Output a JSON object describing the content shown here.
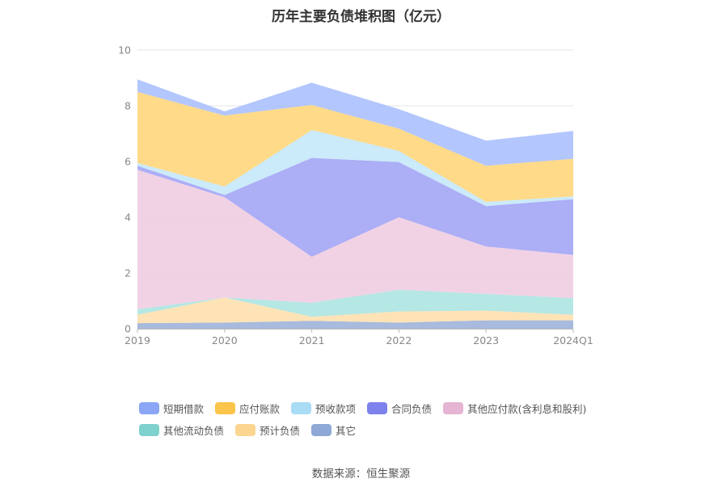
{
  "chart_data": {
    "type": "area",
    "stacked": true,
    "title": "历年主要负债堆积图（亿元）",
    "categories": [
      "2019",
      "2020",
      "2021",
      "2022",
      "2023",
      "2024Q1"
    ],
    "ylim": [
      0,
      10
    ],
    "yticks": [
      0,
      2,
      4,
      6,
      8,
      10
    ],
    "grid": true,
    "legend_position": "bottom",
    "series": [
      {
        "name": "其它",
        "color": "#9fb3d9",
        "values": [
          0.2,
          0.22,
          0.28,
          0.22,
          0.3,
          0.3
        ]
      },
      {
        "name": "预计负债",
        "color": "#fde0ae",
        "values": [
          0.3,
          0.9,
          0.15,
          0.4,
          0.35,
          0.2
        ]
      },
      {
        "name": "其他流动负债",
        "color": "#ade4e1",
        "values": [
          0.2,
          0.0,
          0.5,
          0.78,
          0.6,
          0.6
        ]
      },
      {
        "name": "其他应付款(含利息和股利)",
        "color": "#f0cde2",
        "values": [
          5.0,
          3.6,
          1.65,
          2.6,
          1.7,
          1.55
        ]
      },
      {
        "name": "合同负债",
        "color": "#a3a5f5",
        "values": [
          0.15,
          0.08,
          3.55,
          1.98,
          1.45,
          2.0
        ]
      },
      {
        "name": "预收款项",
        "color": "#c5e8fa",
        "values": [
          0.1,
          0.3,
          1.0,
          0.4,
          0.15,
          0.1
        ]
      },
      {
        "name": "应付账款",
        "color": "#fed67c",
        "values": [
          2.55,
          2.55,
          0.9,
          0.8,
          1.3,
          1.35
        ]
      },
      {
        "name": "短期借款",
        "color": "#abc0fd",
        "values": [
          0.45,
          0.15,
          0.8,
          0.7,
          0.9,
          1.0
        ]
      }
    ]
  },
  "legend": {
    "items": [
      {
        "label": "短期借款",
        "color": "#8aa6f5"
      },
      {
        "label": "应付账款",
        "color": "#fbc44a"
      },
      {
        "label": "预收款项",
        "color": "#a9dcf5"
      },
      {
        "label": "合同负债",
        "color": "#7d82ec"
      },
      {
        "label": "其他应付款(含利息和股利)",
        "color": "#e6b5d3"
      },
      {
        "label": "其他流动负债",
        "color": "#7fd1cd"
      },
      {
        "label": "预计负债",
        "color": "#fcd590"
      },
      {
        "label": "其它",
        "color": "#8ea9d6"
      }
    ]
  },
  "source": "数据来源：恒生聚源"
}
